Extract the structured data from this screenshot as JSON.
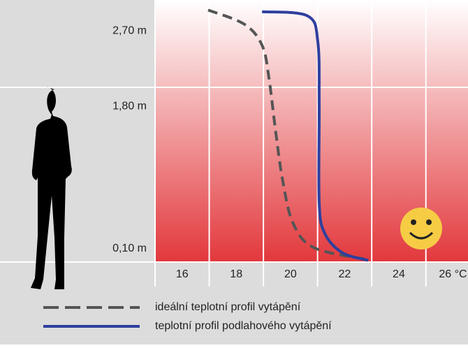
{
  "chart_data": {
    "type": "line",
    "xlim": [
      15,
      26.4
    ],
    "ylim": [
      -0.06,
      3.07
    ],
    "xticks": [
      16,
      18,
      20,
      22,
      24,
      {
        "value": 26,
        "label": "26 °C"
      }
    ],
    "yticks": [
      {
        "value": 0.1,
        "label": "0,10 m"
      },
      {
        "value": 1.8,
        "label": "1,80 m"
      },
      {
        "value": 2.7,
        "label": "2,70 m"
      }
    ],
    "series": [
      {
        "name": "ideální teplotní profil vytápění",
        "color": "#555555",
        "dashed": true,
        "x": [
          16.96,
          18.3,
          18.95,
          19.2,
          19.46,
          19.72,
          20.1,
          20.88,
          22.82
        ],
        "values": [
          2.95,
          2.78,
          2.53,
          2.15,
          1.48,
          0.9,
          0.4,
          0.11,
          -0.03
        ]
      },
      {
        "name": "teplotní profil podlahového vytápění",
        "color": "#2e3f9e",
        "dashed": false,
        "x": [
          18.95,
          20.63,
          21.01,
          21.06,
          21.06,
          21.27,
          21.92,
          22.87
        ],
        "values": [
          2.93,
          2.88,
          2.57,
          1.82,
          0.65,
          0.28,
          0.05,
          -0.04
        ]
      }
    ]
  }
}
